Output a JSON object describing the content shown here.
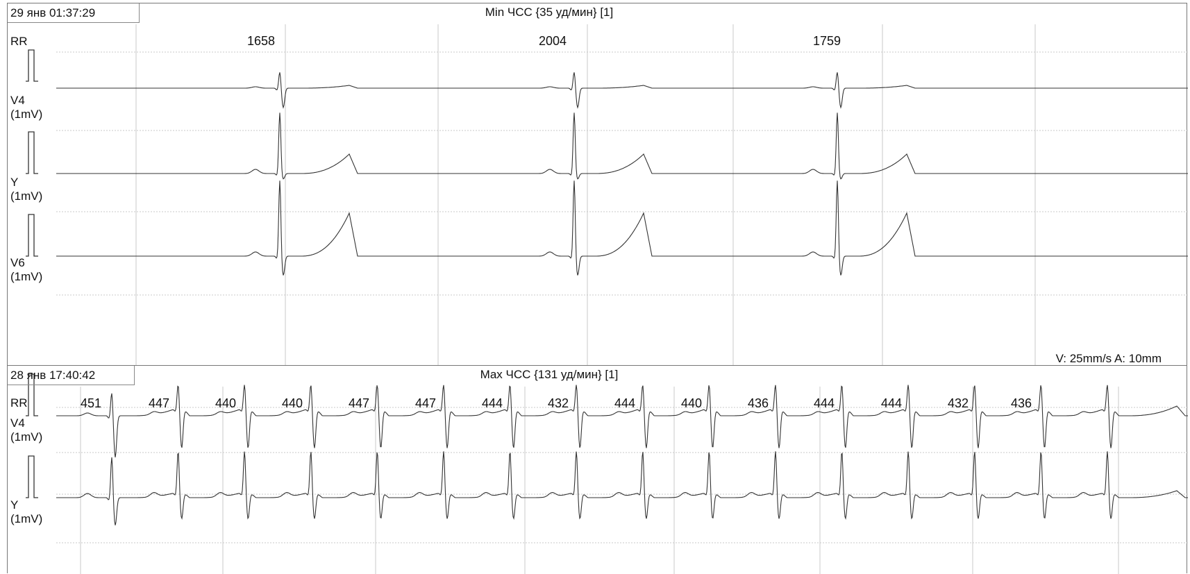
{
  "top": {
    "timestamp": "29 янв 01:37:29",
    "title": "Min ЧСС {35 уд/мин} [1]",
    "rr_label": "RR",
    "rr_values": [
      "1658",
      "2004",
      "1759"
    ],
    "leads": [
      {
        "name": "V4",
        "scale": "(1mV)"
      },
      {
        "name": "Y",
        "scale": "(1mV)"
      },
      {
        "name": "V6",
        "scale": "(1mV)"
      }
    ],
    "speed": "V: 25mm/s  A: 10mm"
  },
  "bottom": {
    "timestamp": "28 янв 17:40:42",
    "title": "Max ЧСС {131 уд/мин} [1]",
    "rr_label": "RR",
    "rr_values": [
      "451",
      "447",
      "440",
      "440",
      "447",
      "447",
      "444",
      "432",
      "444",
      "440",
      "436",
      "444",
      "444",
      "432",
      "436"
    ],
    "leads": [
      {
        "name": "V4",
        "scale": "(1mV)"
      },
      {
        "name": "Y",
        "scale": "(1mV)"
      }
    ]
  },
  "colors": {
    "trace": "#333333",
    "grid": "#c8c8c8",
    "border": "#777777"
  }
}
